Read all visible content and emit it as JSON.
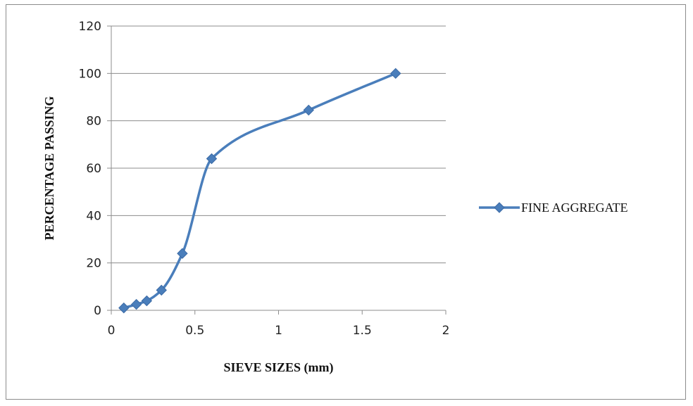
{
  "chart_data": {
    "type": "line",
    "xlabel": "SIEVE SIZES (mm)",
    "ylabel": "PERCENTAGE PASSING",
    "xlim": [
      0,
      2
    ],
    "ylim": [
      0,
      120
    ],
    "x_ticks": [
      0,
      0.5,
      1,
      1.5,
      2
    ],
    "x_tick_labels": [
      "0",
      "0.5",
      "1",
      "1.5",
      "2"
    ],
    "y_ticks": [
      0,
      20,
      40,
      60,
      80,
      100,
      120
    ],
    "y_tick_labels": [
      "0",
      "20",
      "40",
      "60",
      "80",
      "100",
      "120"
    ],
    "grid": "horizontal",
    "legend_position": "right",
    "smoothed": true,
    "marker": "diamond",
    "series": [
      {
        "name": "FINE AGGREGATE",
        "color": "#4a7ebb",
        "x": [
          0.075,
          0.15,
          0.212,
          0.3,
          0.425,
          0.6,
          1.18,
          1.7
        ],
        "y": [
          1,
          2.5,
          4,
          8.5,
          24,
          64,
          84.5,
          100
        ]
      }
    ]
  }
}
